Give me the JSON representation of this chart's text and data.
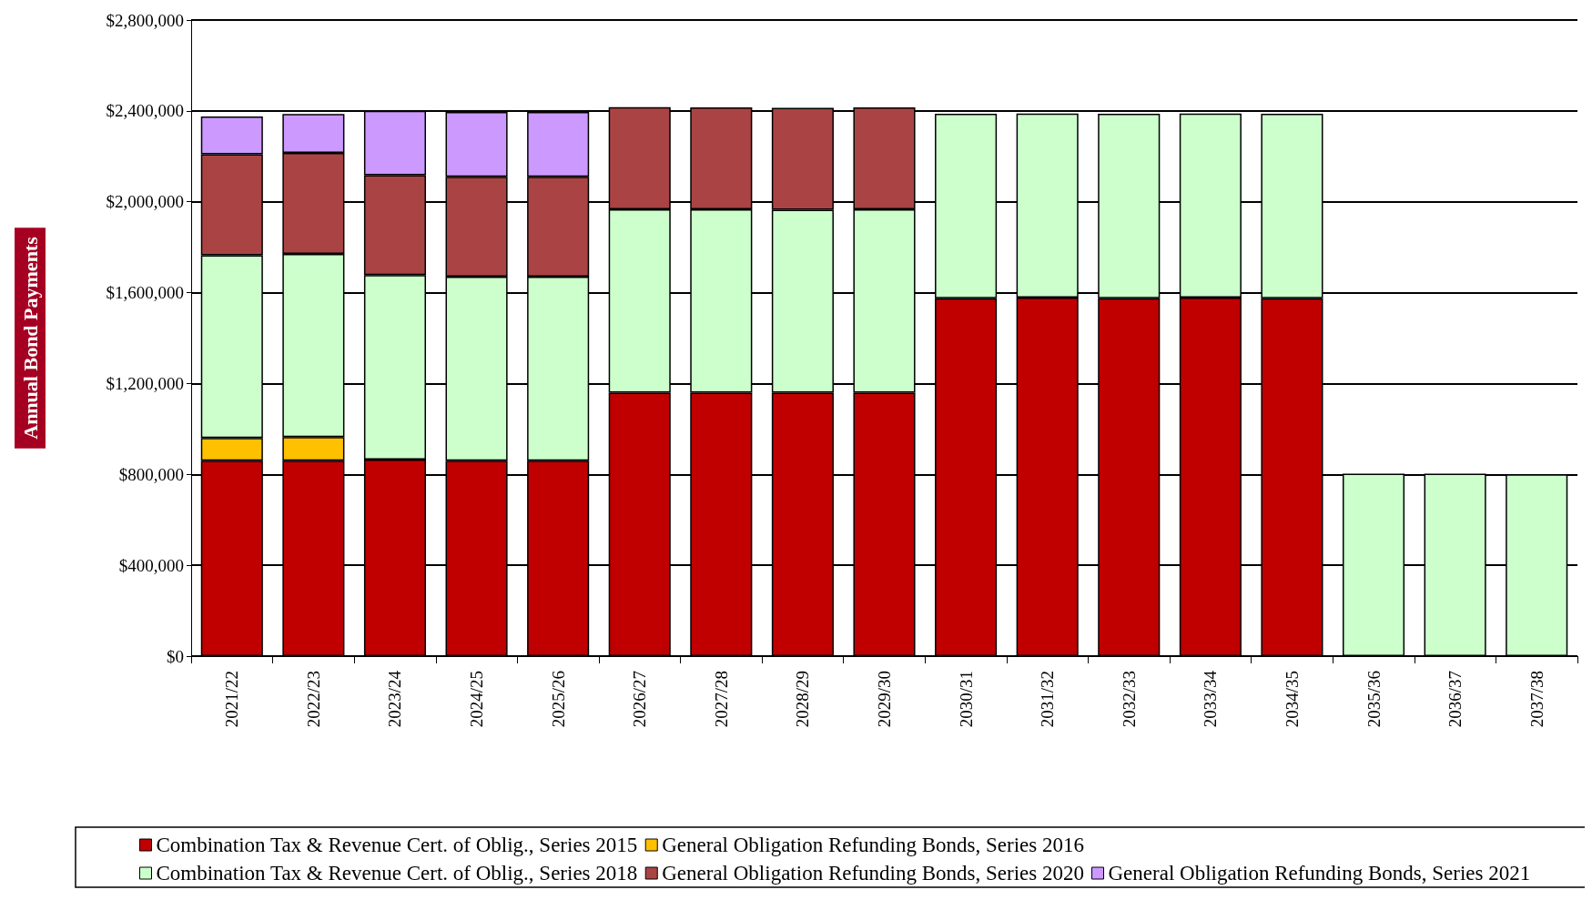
{
  "chart_data": {
    "type": "bar",
    "stacked": true,
    "ylabel": "Annual Bond Payments",
    "categories": [
      "2021/22",
      "2022/23",
      "2023/24",
      "2024/25",
      "2025/26",
      "2026/27",
      "2027/28",
      "2028/29",
      "2029/30",
      "2030/31",
      "2031/32",
      "2032/33",
      "2033/34",
      "2034/35",
      "2035/36",
      "2036/37",
      "2037/38"
    ],
    "series": [
      {
        "name": "Combination Tax & Revenue Cert. of Oblig., Series 2015",
        "color": "#c00000",
        "values": [
          860000,
          860000,
          865000,
          860000,
          860000,
          1160000,
          1160000,
          1160000,
          1160000,
          1575000,
          1578000,
          1575000,
          1578000,
          1575000,
          null,
          null,
          null
        ]
      },
      {
        "name": "General Obligation Refunding Bonds, Series 2016",
        "color": "#ffc000",
        "values": [
          100000,
          104000,
          null,
          null,
          null,
          null,
          null,
          null,
          null,
          null,
          null,
          null,
          null,
          null,
          null,
          null,
          null
        ]
      },
      {
        "name": "Combination Tax & Revenue Cert. of Oblig., Series 2018",
        "color": "#ccffcc",
        "values": [
          805000,
          807000,
          812000,
          810000,
          810000,
          807000,
          807000,
          805000,
          807000,
          812000,
          810000,
          812000,
          810000,
          812000,
          803000,
          803000,
          800000
        ]
      },
      {
        "name": "General Obligation Refunding Bonds, Series 2020",
        "color": "#aa4444",
        "values": [
          444000,
          444000,
          440000,
          440000,
          440000,
          449000,
          448000,
          448000,
          448000,
          null,
          null,
          null,
          null,
          null,
          null,
          null,
          null
        ]
      },
      {
        "name": "General Obligation Refunding Bonds, Series 2021",
        "color": "#cc99ff",
        "values": [
          166000,
          171000,
          283000,
          285000,
          285000,
          null,
          null,
          null,
          null,
          null,
          null,
          null,
          null,
          null,
          null,
          null,
          null
        ]
      }
    ],
    "ylim": [
      0,
      2800000
    ],
    "yticks": [
      {
        "value": 0,
        "label": "$0"
      },
      {
        "value": 400000,
        "label": "$400,000"
      },
      {
        "value": 800000,
        "label": "$800,000"
      },
      {
        "value": 1200000,
        "label": "$1,200,000"
      },
      {
        "value": 1600000,
        "label": "$1,600,000"
      },
      {
        "value": 2000000,
        "label": "$2,000,000"
      },
      {
        "value": 2400000,
        "label": "$2,400,000"
      },
      {
        "value": 2800000,
        "label": "$2,800,000"
      }
    ],
    "grid": "y",
    "legend": "bottom"
  }
}
